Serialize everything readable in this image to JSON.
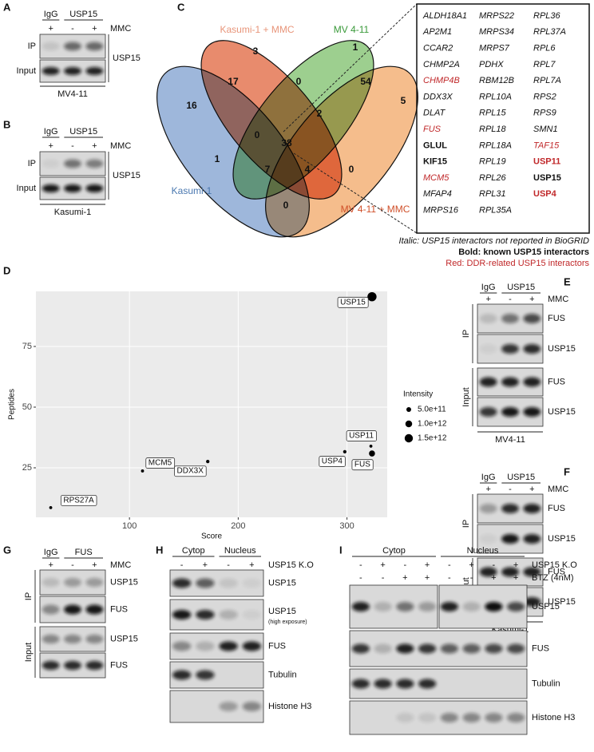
{
  "panels": {
    "A": {
      "label": "A",
      "groups": [
        "IgG",
        "USP15"
      ],
      "treatments": [
        {
          "name": "MMC",
          "signs": [
            "+",
            "-",
            "+"
          ]
        }
      ],
      "sections": [
        "IP",
        "Input"
      ],
      "antibody": "USP15",
      "cell_line": "MV4-11"
    },
    "B": {
      "label": "B",
      "groups": [
        "IgG",
        "USP15"
      ],
      "treatments": [
        {
          "name": "MMC",
          "signs": [
            "+",
            "-",
            "+"
          ]
        }
      ],
      "sections": [
        "IP",
        "Input"
      ],
      "antibody": "USP15",
      "cell_line": "Kasumi-1"
    },
    "C": {
      "label": "C",
      "venn": {
        "sets": [
          "Kasumi-1 + MMC",
          "MV 4-11",
          "Kasumi-1",
          "MV 4-11 + MMC"
        ],
        "regions": [
          3,
          1,
          16,
          17,
          0,
          54,
          5,
          0,
          2,
          38,
          1,
          7,
          4,
          0,
          0
        ]
      },
      "genes": [
        [
          {
            "name": "ALDH18A1",
            "style": "italic"
          },
          {
            "name": "AP2M1",
            "style": "italic"
          },
          {
            "name": "CCAR2",
            "style": "italic"
          },
          {
            "name": "CHMP2A",
            "style": "italic"
          },
          {
            "name": "CHMP4B",
            "style": "italic red"
          },
          {
            "name": "DDX3X",
            "style": "italic"
          },
          {
            "name": "DLAT",
            "style": "italic"
          },
          {
            "name": "FUS",
            "style": "italic red"
          },
          {
            "name": "GLUL",
            "style": "bold"
          },
          {
            "name": "KIF15",
            "style": "bold"
          },
          {
            "name": "MCM5",
            "style": "italic red"
          },
          {
            "name": "MFAP4",
            "style": "italic"
          },
          {
            "name": "MRPS16",
            "style": "italic"
          }
        ],
        [
          {
            "name": "MRPS22",
            "style": "italic"
          },
          {
            "name": "MRPS34",
            "style": "italic"
          },
          {
            "name": "MRPS7",
            "style": "italic"
          },
          {
            "name": "PDHX",
            "style": "italic"
          },
          {
            "name": "RBM12B",
            "style": "italic"
          },
          {
            "name": "RPL10A",
            "style": "italic"
          },
          {
            "name": "RPL15",
            "style": "italic"
          },
          {
            "name": "RPL18",
            "style": "italic"
          },
          {
            "name": "RPL18A",
            "style": "italic"
          },
          {
            "name": "RPL19",
            "style": "italic"
          },
          {
            "name": "RPL26",
            "style": "italic"
          },
          {
            "name": "RPL31",
            "style": "italic"
          },
          {
            "name": "RPL35A",
            "style": "italic"
          }
        ],
        [
          {
            "name": "RPL36",
            "style": "italic"
          },
          {
            "name": "RPL37A",
            "style": "italic"
          },
          {
            "name": "RPL6",
            "style": "italic"
          },
          {
            "name": "RPL7",
            "style": "italic"
          },
          {
            "name": "RPL7A",
            "style": "italic"
          },
          {
            "name": "RPS2",
            "style": "italic"
          },
          {
            "name": "RPS9",
            "style": "italic"
          },
          {
            "name": "SMN1",
            "style": "italic"
          },
          {
            "name": "TAF15",
            "style": "italic red"
          },
          {
            "name": "USP11",
            "style": "bold red"
          },
          {
            "name": "USP15",
            "style": "bold"
          },
          {
            "name": "USP4",
            "style": "bold red"
          }
        ]
      ],
      "notes": [
        {
          "text": "Italic: USP15 interactors not reported in BioGRID",
          "style": "italic"
        },
        {
          "text": "Bold: known USP15 interactors",
          "style": "bold"
        },
        {
          "text": "Red: DDR-related USP15 interactors",
          "style": "red"
        }
      ]
    },
    "E": {
      "label": "E",
      "groups": [
        "IgG",
        "USP15"
      ],
      "treatments": [
        {
          "name": "MMC",
          "signs": [
            "+",
            "-",
            "+"
          ]
        }
      ],
      "sections": [
        "IP",
        "Input"
      ],
      "rows": [
        {
          "name": "FUS"
        },
        {
          "name": "USP15"
        },
        {
          "name": "FUS"
        },
        {
          "name": "USP15"
        }
      ],
      "cell_line": "MV4-11"
    },
    "F": {
      "label": "F",
      "groups": [
        "IgG",
        "USP15"
      ],
      "treatments": [
        {
          "name": "MMC",
          "signs": [
            "+",
            "-",
            "+"
          ]
        }
      ],
      "sections": [
        "IP",
        "Input"
      ],
      "rows": [
        {
          "name": "FUS"
        },
        {
          "name": "USP15"
        },
        {
          "name": "FUS"
        },
        {
          "name": "USP15"
        }
      ],
      "cell_line": "Kasumi-1"
    },
    "G": {
      "label": "G",
      "groups": [
        "IgG",
        "FUS"
      ],
      "treatments": [
        {
          "name": "MMC",
          "signs": [
            "+",
            "-",
            "+"
          ]
        }
      ],
      "sections": [
        "IP",
        "Input"
      ],
      "rows": [
        {
          "name": "USP15"
        },
        {
          "name": "FUS"
        },
        {
          "name": "USP15"
        },
        {
          "name": "FUS"
        }
      ]
    },
    "H": {
      "label": "H",
      "groups": [
        "Cytop",
        "Nucleus"
      ],
      "treatments": [
        {
          "name": "USP15 K.O",
          "signs": [
            "-",
            "+",
            "-",
            "+"
          ]
        }
      ],
      "rows": [
        {
          "name": "USP15"
        },
        {
          "name": "USP15",
          "note": "(high exposure)"
        },
        {
          "name": "FUS"
        },
        {
          "name": "Tubulin"
        },
        {
          "name": "Histone H3"
        }
      ]
    },
    "I": {
      "label": "I",
      "groups": [
        "Cytop",
        "Nucleus"
      ],
      "treatments": [
        {
          "name": "USP15 K.O",
          "signs": [
            "-",
            "+",
            "-",
            "+",
            "-",
            "+",
            "-",
            "+"
          ]
        },
        {
          "name": "BTZ (4nM)",
          "signs": [
            "-",
            "-",
            "+",
            "+",
            "-",
            "-",
            "+",
            "+"
          ]
        }
      ],
      "rows": [
        {
          "name": "USP15"
        },
        {
          "name": "FUS"
        },
        {
          "name": "Tubulin"
        },
        {
          "name": "Histone H3"
        }
      ]
    }
  },
  "chart_data": {
    "type": "scatter",
    "panel_label": "D",
    "xlabel": "Score",
    "ylabel": "Peptides",
    "point_labels": [
      "RPS27A",
      "MCM5",
      "DDX3X",
      "USP4",
      "USP11",
      "FUS",
      "USP15"
    ],
    "x": [
      27.6,
      112,
      172,
      298,
      322,
      323,
      323
    ],
    "values": [
      8.6,
      23.7,
      27.6,
      31.6,
      33.9,
      30.9,
      95.5
    ],
    "sizes": [
      200000000000,
      200000000000,
      250000000000,
      250000000000,
      200000000000,
      800000000000,
      1800000000000
    ],
    "color": "#000000",
    "background": "#ebebeb",
    "grid": true,
    "xlim": [
      14,
      337
    ],
    "ylim": [
      4.6,
      97.7
    ],
    "xticks": [
      100,
      200,
      300
    ],
    "yticks": [
      25,
      50,
      75
    ],
    "size_legend": {
      "title": "Intensity",
      "ticks": [
        {
          "value": 500000000000,
          "label": "5.0e+11"
        },
        {
          "value": 1000000000000,
          "label": "1.0e+12"
        },
        {
          "value": 1500000000000,
          "label": "1.5e+12"
        }
      ]
    }
  }
}
